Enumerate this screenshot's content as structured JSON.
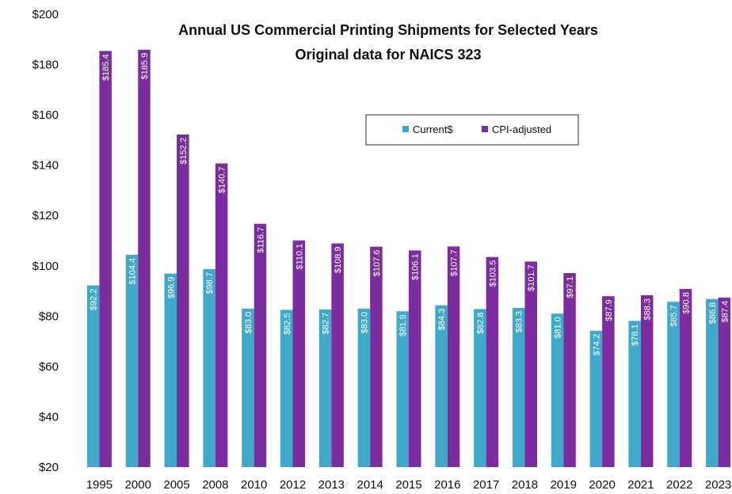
{
  "chart_data": {
    "type": "bar",
    "title": "Annual US Commercial Printing Shipments for Selected Years",
    "subtitle": "Original data for NAICS 323",
    "categories": [
      "1995",
      "2000",
      "2005",
      "2008",
      "2010",
      "2012",
      "2013",
      "2014",
      "2015",
      "2016",
      "2017",
      "2018",
      "2019",
      "2020",
      "2021",
      "2022",
      "2023"
    ],
    "series": [
      {
        "name": "Current$",
        "color": "#3fa9c9",
        "values": [
          92.2,
          104.4,
          96.9,
          98.7,
          83.0,
          82.5,
          82.7,
          83.0,
          81.9,
          84.3,
          82.8,
          83.3,
          81.0,
          74.2,
          78.1,
          85.7,
          86.8
        ],
        "labels": [
          "$92.2",
          "$104.4",
          "$96.9",
          "$98.7",
          "$83.0",
          "$82.5",
          "$82.7",
          "$83.0",
          "$81.9",
          "$84.3",
          "$82.8",
          "$83.3",
          "$81.0",
          "$74.2",
          "$78.1",
          "$85.7",
          "$86.8"
        ]
      },
      {
        "name": "CPI-adjusted",
        "color": "#7b2da0",
        "values": [
          185.4,
          185.9,
          152.2,
          140.7,
          116.7,
          110.1,
          108.9,
          107.6,
          106.1,
          107.7,
          103.5,
          101.7,
          97.1,
          87.9,
          88.3,
          90.8,
          87.4
        ],
        "labels": [
          "$185.4",
          "$185.9",
          "$152.2",
          "$140.7",
          "$116.7",
          "$110.1",
          "$108.9",
          "$107.6",
          "$106.1",
          "$107.7",
          "$103.5",
          "$101.7",
          "$97.1",
          "$87.9",
          "$88.3",
          "$90.8",
          "$87.4"
        ]
      }
    ],
    "yticks": [
      "$20",
      "$40",
      "$60",
      "$80",
      "$100",
      "$120",
      "$140",
      "$160",
      "$180",
      "$200"
    ],
    "ytick_values": [
      20,
      40,
      60,
      80,
      100,
      120,
      140,
      160,
      180,
      200
    ],
    "ylim": [
      20,
      200
    ],
    "grid": false,
    "legend_position": "upper-middle-right"
  }
}
